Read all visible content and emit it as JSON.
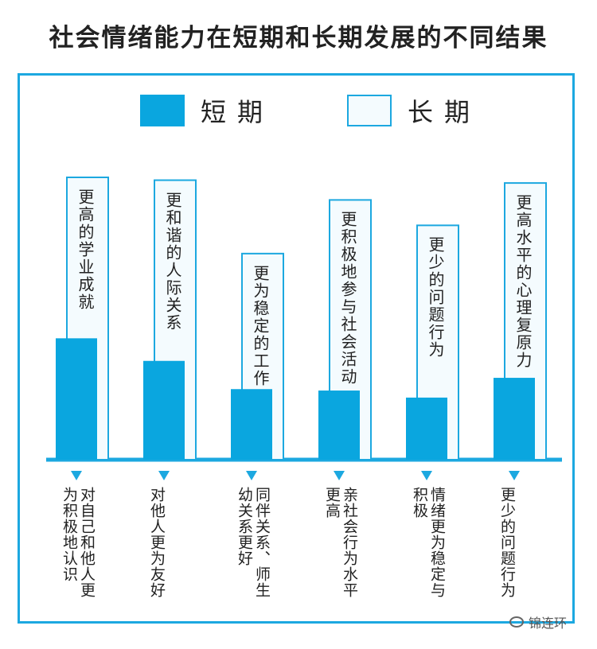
{
  "chart_data": {
    "type": "bar",
    "title": "社会情绪能力在短期和长期发展的不同结果",
    "legend": [
      {
        "name": "短期",
        "style": "filled"
      },
      {
        "name": "长期",
        "style": "outlined"
      }
    ],
    "short_term": {
      "name": "短期",
      "values": [
        0.43,
        0.35,
        0.25,
        0.245,
        0.22,
        0.29
      ],
      "labels": [
        "对自己和他人更为积极地认识",
        "对他人更为友好",
        "同伴关系、师生幼关系更好",
        "亲社会行为水平更高",
        "情绪更为稳定与积极",
        "更少的问题行为"
      ]
    },
    "long_term": {
      "name": "长期",
      "values": [
        1.0,
        0.99,
        0.73,
        0.92,
        0.83,
        0.98
      ],
      "labels": [
        "更高的学业成就",
        "更和谐的人际关系",
        "更为稳定的工作",
        "更积极地参与社会活动",
        "更少的问题行为",
        "更高水平的心理复原力"
      ]
    }
  },
  "watermark": "锦连环"
}
